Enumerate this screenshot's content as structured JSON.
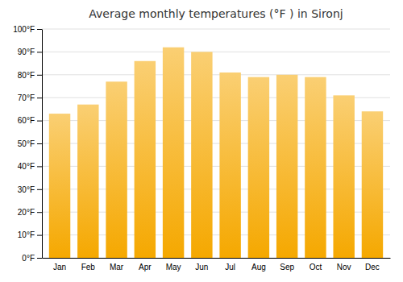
{
  "chart_data": {
    "type": "bar",
    "title": "Average monthly temperatures (°F ) in Sironj",
    "categories": [
      "Jan",
      "Feb",
      "Mar",
      "Apr",
      "May",
      "Jun",
      "Jul",
      "Aug",
      "Sep",
      "Oct",
      "Nov",
      "Dec"
    ],
    "values": [
      63,
      67,
      77,
      86,
      92,
      90,
      81,
      79,
      80,
      79,
      71,
      64
    ],
    "color": "#F5A800",
    "ylim": [
      0,
      100
    ],
    "yticks": [
      {
        "value": 0,
        "label": "0°F"
      },
      {
        "value": 10,
        "label": "10°F"
      },
      {
        "value": 20,
        "label": "20°F"
      },
      {
        "value": 30,
        "label": "30°F"
      },
      {
        "value": 40,
        "label": "40°F"
      },
      {
        "value": 50,
        "label": "50°F"
      },
      {
        "value": 60,
        "label": "60°F"
      },
      {
        "value": 70,
        "label": "70°F"
      },
      {
        "value": 80,
        "label": "80°F"
      },
      {
        "value": 90,
        "label": "90°F"
      },
      {
        "value": 100,
        "label": "100°F"
      }
    ],
    "grid": true
  }
}
